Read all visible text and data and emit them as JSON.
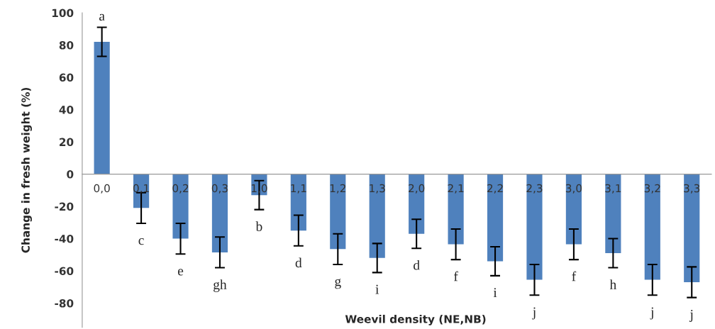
{
  "chart_data": {
    "type": "bar",
    "xlabel": "Weevil density (NE,NB)",
    "ylabel": "Change in fresh weight (%)",
    "categories": [
      "0,0",
      "0,1",
      "0,2",
      "0,3",
      "1,0",
      "1,1",
      "1,2",
      "1,3",
      "2,0",
      "2,1",
      "2,2",
      "2,3",
      "3,0",
      "3,1",
      "3,2",
      "3,3"
    ],
    "values": [
      82,
      -21,
      -40,
      -48.5,
      -13,
      -35,
      -46.5,
      -52,
      -37,
      -43.5,
      -54,
      -65.5,
      -43.5,
      -49,
      -65.5,
      -67
    ],
    "errors": [
      9,
      9.5,
      9.5,
      9.5,
      9,
      9.5,
      9.5,
      9,
      9,
      9.5,
      9,
      9.5,
      9.5,
      9,
      9.5,
      9.5
    ],
    "color": "#4f81bd",
    "ylim": [
      -95,
      100
    ],
    "yticks": [
      -80,
      -60,
      -40,
      -20,
      0,
      20,
      40,
      60,
      80,
      100
    ],
    "grid": false,
    "legend": false,
    "annotations": [
      "a",
      "c",
      "e",
      "gh",
      "b",
      "d",
      "g",
      "i",
      "d",
      "f",
      "i",
      "j",
      "f",
      "h",
      "j",
      "j"
    ]
  }
}
